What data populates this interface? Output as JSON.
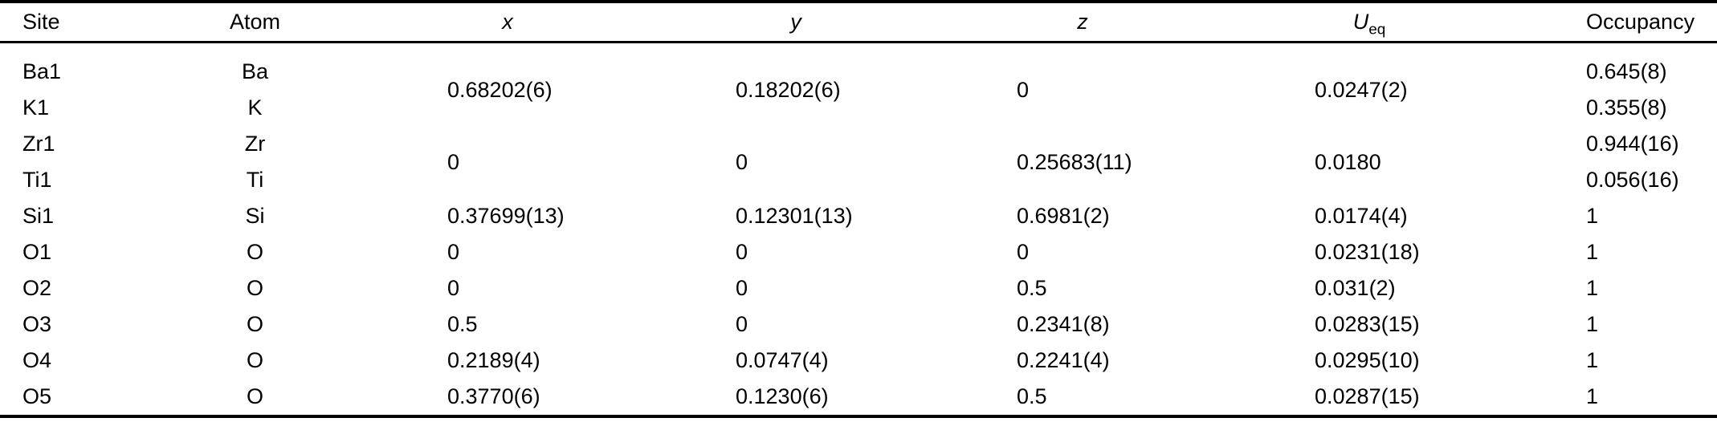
{
  "table": {
    "description": "Atomic sites, fractional coordinates, equivalent isotropic displacement parameters and occupancies",
    "headers": {
      "site": "Site",
      "atom": "Atom",
      "x": "x",
      "y": "y",
      "z": "z",
      "u_base": "U",
      "u_sub": "eq",
      "occupancy": "Occupancy"
    },
    "rows": [
      {
        "site": "Ba1",
        "atom": "Ba",
        "x": "0.68202(6)",
        "y": "0.18202(6)",
        "z": "0",
        "ueq": "0.0247(2)",
        "occupancy": "0.645(8)",
        "coords_shared_with_next_row": true
      },
      {
        "site": "K1",
        "atom": "K",
        "occupancy": "0.355(8)"
      },
      {
        "site": "Zr1",
        "atom": "Zr",
        "x": "0",
        "y": "0",
        "z": "0.25683(11)",
        "ueq": "0.0180",
        "occupancy": "0.944(16)",
        "coords_shared_with_next_row": true
      },
      {
        "site": "Ti1",
        "atom": "Ti",
        "occupancy": "0.056(16)"
      },
      {
        "site": "Si1",
        "atom": "Si",
        "x": "0.37699(13)",
        "y": "0.12301(13)",
        "z": "0.6981(2)",
        "ueq": "0.0174(4)",
        "occupancy": "1"
      },
      {
        "site": "O1",
        "atom": "O",
        "x": "0",
        "y": "0",
        "z": "0",
        "ueq": "0.0231(18)",
        "occupancy": "1"
      },
      {
        "site": "O2",
        "atom": "O",
        "x": "0",
        "y": "0",
        "z": "0.5",
        "ueq": "0.031(2)",
        "occupancy": "1"
      },
      {
        "site": "O3",
        "atom": "O",
        "x": "0.5",
        "y": "0",
        "z": "0.2341(8)",
        "ueq": "0.0283(15)",
        "occupancy": "1"
      },
      {
        "site": "O4",
        "atom": "O",
        "x": "0.2189(4)",
        "y": "0.0747(4)",
        "z": "0.2241(4)",
        "ueq": "0.0295(10)",
        "occupancy": "1"
      },
      {
        "site": "O5",
        "atom": "O",
        "x": "0.3770(6)",
        "y": "0.1230(6)",
        "z": "0.5",
        "ueq": "0.0287(15)",
        "occupancy": "1"
      }
    ]
  }
}
